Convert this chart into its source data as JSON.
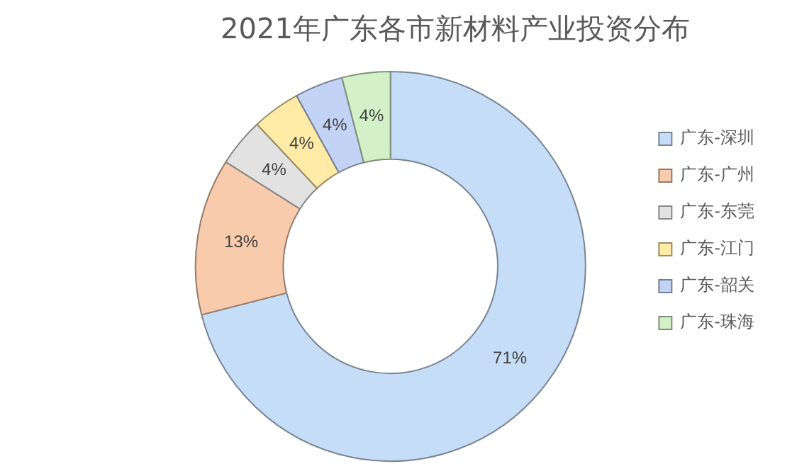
{
  "chart_data": {
    "type": "donut",
    "title": "2021年广东各市新材料产业投资分布",
    "categories": [
      "广东-深圳",
      "广东-广州",
      "广东-东莞",
      "广东-江门",
      "广东-韶关",
      "广东-珠海"
    ],
    "values": [
      71,
      13,
      4,
      4,
      4,
      4
    ],
    "colors": [
      "#c6ddf7",
      "#f8cbad",
      "#e2e2e2",
      "#ffeba6",
      "#c3d3f5",
      "#d3f0c8"
    ],
    "value_labels": [
      "71%",
      "13%",
      "4%",
      "4%",
      "4%",
      "4%"
    ],
    "legend": "right"
  }
}
